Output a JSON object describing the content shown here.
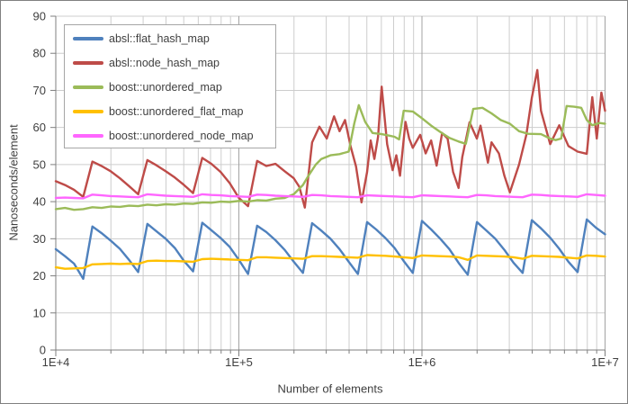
{
  "chart_data": {
    "type": "line",
    "title": "",
    "xlabel": "Number of elements",
    "ylabel": "Nanoseconds/element",
    "x_scale": "log10",
    "x_range_log10": [
      4,
      7
    ],
    "x_major_ticks": [
      {
        "label": "1E+4",
        "log10": 4
      },
      {
        "label": "1E+5",
        "log10": 5
      },
      {
        "label": "1E+6",
        "log10": 6
      },
      {
        "label": "1E+7",
        "log10": 7
      }
    ],
    "y_range": [
      0,
      90
    ],
    "y_ticks": [
      0,
      10,
      20,
      30,
      40,
      50,
      60,
      70,
      80,
      90
    ],
    "grid": true,
    "legend_position": "top-left",
    "series": [
      {
        "name": "absl::flat_hash_map",
        "color": "#4F81BD",
        "x_log10_start": 4.0,
        "x_log10_step": 0.05,
        "y": [
          27.2,
          25.3,
          23.3,
          19.2,
          33.3,
          31.5,
          29.5,
          27.3,
          24.3,
          21.0,
          34.0,
          32.0,
          30.0,
          27.5,
          24.0,
          21.2,
          34.3,
          32.3,
          30.2,
          27.8,
          24.3,
          20.5,
          33.5,
          31.8,
          29.6,
          27.0,
          23.8,
          20.8,
          34.2,
          32.2,
          30.0,
          27.2,
          23.8,
          20.5,
          34.5,
          32.5,
          30.2,
          27.5,
          24.0,
          20.8,
          34.8,
          32.5,
          30.0,
          27.2,
          23.5,
          20.3,
          34.5,
          32.3,
          30.0,
          27.0,
          23.5,
          20.8,
          35.0,
          32.8,
          30.3,
          27.3,
          23.8,
          21.0,
          35.2,
          33.0,
          31.2
        ]
      },
      {
        "name": "absl::node_hash_map",
        "color": "#BE4B48",
        "points": [
          [
            4.0,
            45.5
          ],
          [
            4.05,
            44.5
          ],
          [
            4.1,
            43.2
          ],
          [
            4.15,
            41.3
          ],
          [
            4.2,
            50.8
          ],
          [
            4.25,
            49.6
          ],
          [
            4.3,
            48.2
          ],
          [
            4.35,
            46.3
          ],
          [
            4.4,
            44.2
          ],
          [
            4.45,
            42.0
          ],
          [
            4.5,
            51.2
          ],
          [
            4.55,
            49.8
          ],
          [
            4.6,
            48.2
          ],
          [
            4.65,
            46.5
          ],
          [
            4.7,
            44.5
          ],
          [
            4.75,
            42.3
          ],
          [
            4.8,
            51.8
          ],
          [
            4.85,
            50.2
          ],
          [
            4.9,
            48.0
          ],
          [
            4.95,
            45.0
          ],
          [
            5.0,
            41.0
          ],
          [
            5.05,
            38.8
          ],
          [
            5.1,
            51.0
          ],
          [
            5.15,
            49.6
          ],
          [
            5.2,
            50.2
          ],
          [
            5.25,
            48.2
          ],
          [
            5.3,
            46.3
          ],
          [
            5.33,
            44.0
          ],
          [
            5.36,
            38.4
          ],
          [
            5.4,
            56.0
          ],
          [
            5.44,
            60.2
          ],
          [
            5.48,
            57.0
          ],
          [
            5.52,
            63.0
          ],
          [
            5.55,
            59.0
          ],
          [
            5.58,
            62.0
          ],
          [
            5.61,
            55.0
          ],
          [
            5.64,
            49.5
          ],
          [
            5.67,
            39.8
          ],
          [
            5.7,
            48.0
          ],
          [
            5.72,
            56.5
          ],
          [
            5.74,
            51.5
          ],
          [
            5.76,
            57.5
          ],
          [
            5.78,
            71.0
          ],
          [
            5.81,
            55.5
          ],
          [
            5.84,
            48.5
          ],
          [
            5.86,
            52.5
          ],
          [
            5.88,
            47.0
          ],
          [
            5.91,
            61.5
          ],
          [
            5.93,
            57.0
          ],
          [
            5.95,
            54.5
          ],
          [
            5.99,
            58.0
          ],
          [
            6.02,
            53.0
          ],
          [
            6.05,
            56.5
          ],
          [
            6.08,
            49.7
          ],
          [
            6.11,
            58.5
          ],
          [
            6.14,
            57.0
          ],
          [
            6.17,
            48.0
          ],
          [
            6.2,
            43.7
          ],
          [
            6.22,
            52.0
          ],
          [
            6.26,
            61.4
          ],
          [
            6.3,
            57.0
          ],
          [
            6.32,
            60.5
          ],
          [
            6.36,
            50.5
          ],
          [
            6.38,
            56.0
          ],
          [
            6.42,
            53.0
          ],
          [
            6.45,
            47.0
          ],
          [
            6.48,
            42.5
          ],
          [
            6.53,
            50.0
          ],
          [
            6.57,
            58.0
          ],
          [
            6.6,
            68.0
          ],
          [
            6.63,
            75.5
          ],
          [
            6.65,
            64.5
          ],
          [
            6.7,
            55.5
          ],
          [
            6.75,
            60.6
          ],
          [
            6.8,
            55.0
          ],
          [
            6.85,
            53.5
          ],
          [
            6.9,
            52.9
          ],
          [
            6.93,
            68.2
          ],
          [
            6.955,
            57.0
          ],
          [
            6.98,
            69.4
          ],
          [
            7.0,
            64.5
          ]
        ]
      },
      {
        "name": "boost::unordered_map",
        "color": "#9BBB59",
        "points": [
          [
            4.0,
            38.0
          ],
          [
            4.05,
            38.3
          ],
          [
            4.1,
            37.8
          ],
          [
            4.15,
            38.0
          ],
          [
            4.2,
            38.5
          ],
          [
            4.25,
            38.3
          ],
          [
            4.3,
            38.7
          ],
          [
            4.35,
            38.6
          ],
          [
            4.4,
            38.9
          ],
          [
            4.45,
            38.8
          ],
          [
            4.5,
            39.2
          ],
          [
            4.55,
            39.0
          ],
          [
            4.6,
            39.3
          ],
          [
            4.65,
            39.2
          ],
          [
            4.7,
            39.5
          ],
          [
            4.75,
            39.4
          ],
          [
            4.8,
            39.8
          ],
          [
            4.85,
            39.7
          ],
          [
            4.9,
            40.0
          ],
          [
            4.95,
            39.9
          ],
          [
            5.0,
            40.2
          ],
          [
            5.05,
            40.0
          ],
          [
            5.1,
            40.4
          ],
          [
            5.15,
            40.3
          ],
          [
            5.2,
            40.8
          ],
          [
            5.25,
            41.0
          ],
          [
            5.3,
            42.0
          ],
          [
            5.35,
            44.5
          ],
          [
            5.38,
            47.0
          ],
          [
            5.42,
            50.0
          ],
          [
            5.45,
            51.5
          ],
          [
            5.5,
            52.5
          ],
          [
            5.55,
            52.8
          ],
          [
            5.6,
            53.5
          ],
          [
            5.63,
            61.0
          ],
          [
            5.655,
            66.0
          ],
          [
            5.69,
            61.5
          ],
          [
            5.73,
            58.5
          ],
          [
            5.78,
            58.2
          ],
          [
            5.82,
            57.8
          ],
          [
            5.85,
            57.5
          ],
          [
            5.875,
            56.8
          ],
          [
            5.9,
            64.5
          ],
          [
            5.95,
            64.3
          ],
          [
            6.0,
            62.5
          ],
          [
            6.05,
            60.5
          ],
          [
            6.1,
            58.8
          ],
          [
            6.15,
            57.2
          ],
          [
            6.2,
            56.2
          ],
          [
            6.24,
            55.6
          ],
          [
            6.28,
            65.0
          ],
          [
            6.33,
            65.3
          ],
          [
            6.38,
            63.8
          ],
          [
            6.43,
            62.0
          ],
          [
            6.48,
            61.0
          ],
          [
            6.53,
            59.0
          ],
          [
            6.58,
            58.3
          ],
          [
            6.65,
            58.2
          ],
          [
            6.7,
            57.0
          ],
          [
            6.73,
            56.6
          ],
          [
            6.76,
            57.0
          ],
          [
            6.79,
            65.8
          ],
          [
            6.83,
            65.6
          ],
          [
            6.87,
            65.3
          ],
          [
            6.9,
            62.0
          ],
          [
            6.93,
            60.6
          ],
          [
            6.97,
            61.2
          ],
          [
            7.0,
            61.0
          ]
        ]
      },
      {
        "name": "boost::unordered_flat_map",
        "color": "#FFC000",
        "x_log10_start": 4.0,
        "x_log10_step": 0.05,
        "y": [
          22.3,
          21.9,
          22.0,
          22.1,
          23.1,
          23.2,
          23.3,
          23.2,
          23.3,
          23.2,
          24.0,
          24.1,
          24.0,
          24.0,
          23.9,
          23.8,
          24.5,
          24.6,
          24.5,
          24.4,
          24.3,
          24.2,
          25.0,
          25.0,
          24.9,
          24.8,
          24.7,
          24.6,
          25.3,
          25.3,
          25.2,
          25.1,
          25.0,
          24.9,
          25.6,
          25.5,
          25.4,
          25.2,
          25.0,
          24.8,
          25.5,
          25.4,
          25.3,
          25.2,
          25.0,
          24.3,
          25.5,
          25.4,
          25.3,
          25.2,
          25.0,
          24.6,
          25.4,
          25.3,
          25.2,
          25.1,
          24.9,
          24.7,
          25.5,
          25.4,
          25.2
        ]
      },
      {
        "name": "boost::unordered_node_map",
        "color": "#FF66FF",
        "x_log10_start": 4.0,
        "x_log10_step": 0.05,
        "y": [
          41.0,
          41.1,
          41.0,
          40.9,
          41.9,
          41.7,
          41.5,
          41.4,
          41.3,
          41.2,
          42.0,
          41.8,
          41.6,
          41.5,
          41.4,
          41.3,
          42.0,
          41.8,
          41.7,
          41.5,
          41.4,
          41.3,
          41.9,
          41.8,
          41.6,
          41.5,
          41.4,
          41.3,
          41.8,
          41.7,
          41.5,
          41.4,
          41.3,
          41.2,
          41.7,
          41.6,
          41.5,
          41.4,
          41.3,
          41.2,
          41.7,
          41.6,
          41.5,
          41.4,
          41.3,
          41.2,
          41.8,
          41.7,
          41.5,
          41.4,
          41.3,
          41.2,
          41.9,
          41.8,
          41.6,
          41.5,
          41.4,
          41.3,
          42.0,
          41.8,
          41.6
        ]
      }
    ]
  },
  "colors": {
    "background": "#FFFFFF",
    "frame": "#808080",
    "axis": "#7F7F7F",
    "grid_minor": "#CDCDCD",
    "grid_major": "#A3A3A3",
    "text": "#3F3F3F",
    "legend_border": "#A6A6A6"
  }
}
